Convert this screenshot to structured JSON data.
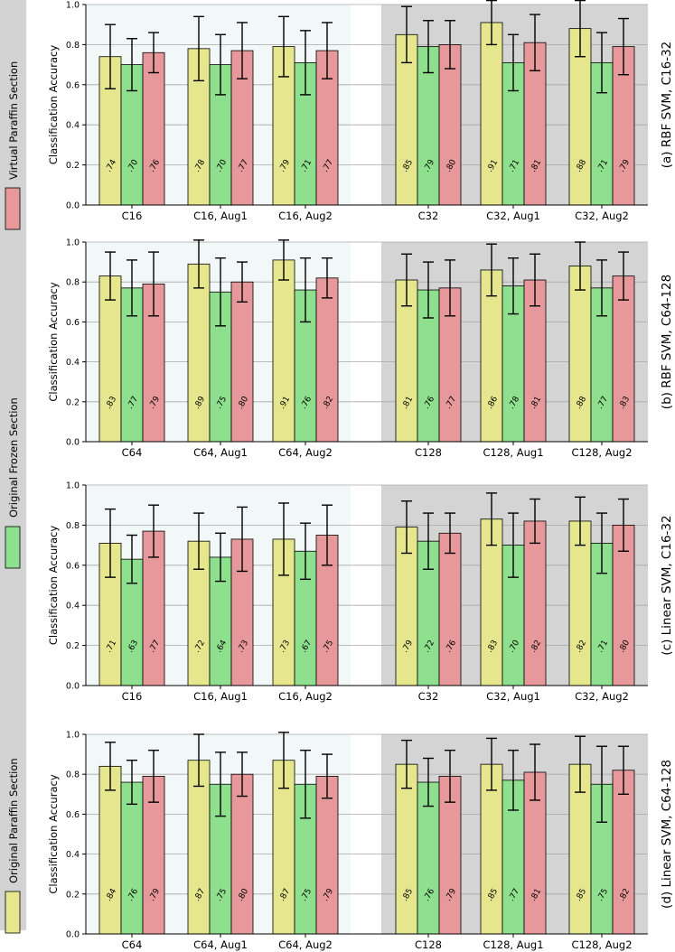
{
  "legend": [
    {
      "label": "Virtual Paraffin Section",
      "color": "#e6989a"
    },
    {
      "label": "Original Frozen Section",
      "color": "#8ee08e"
    },
    {
      "label": "Original Paraffin Section",
      "color": "#e6e68e"
    }
  ],
  "colors": {
    "series": [
      "#e6e68e",
      "#8ee08e",
      "#e6989a"
    ],
    "left_bg": "#f2f7f7",
    "right_bg": "#d4d4d4",
    "sidebar_bg": "#d3d3d3"
  },
  "chart_data": [
    {
      "type": "bar",
      "title": "(a) RBF SVM, C16-32",
      "ylabel": "Classification Accuracy",
      "ylim": [
        0,
        1.0
      ],
      "yticks": [
        "0.0",
        "0.2",
        "0.4",
        "0.6",
        "0.8",
        "1.0"
      ],
      "categories": [
        "C16",
        "C16, Aug1",
        "C16, Aug2",
        "C32",
        "C32, Aug1",
        "C32, Aug2"
      ],
      "series": [
        {
          "name": "Original Paraffin Section",
          "values": [
            0.74,
            0.78,
            0.79,
            0.85,
            0.91,
            0.88
          ],
          "labels": [
            ".74",
            ".78",
            ".79",
            ".85",
            ".91",
            ".88"
          ],
          "errors": [
            0.16,
            0.16,
            0.15,
            0.14,
            0.11,
            0.14
          ]
        },
        {
          "name": "Original Frozen Section",
          "values": [
            0.7,
            0.7,
            0.71,
            0.79,
            0.71,
            0.71
          ],
          "labels": [
            ".70",
            ".70",
            ".71",
            ".79",
            ".71",
            ".71"
          ],
          "errors": [
            0.13,
            0.15,
            0.16,
            0.13,
            0.14,
            0.15
          ]
        },
        {
          "name": "Virtual Paraffin Section",
          "values": [
            0.76,
            0.77,
            0.77,
            0.8,
            0.81,
            0.79
          ],
          "labels": [
            ".76",
            ".77",
            ".77",
            ".80",
            ".81",
            ".79"
          ],
          "errors": [
            0.1,
            0.14,
            0.14,
            0.12,
            0.14,
            0.14
          ]
        }
      ]
    },
    {
      "type": "bar",
      "title": "(b) RBF SVM, C64-128",
      "ylabel": "Classification Accuracy",
      "ylim": [
        0,
        1.0
      ],
      "yticks": [
        "0.0",
        "0.2",
        "0.4",
        "0.6",
        "0.8",
        "1.0"
      ],
      "categories": [
        "C64",
        "C64, Aug1",
        "C64, Aug2",
        "C128",
        "C128, Aug1",
        "C128, Aug2"
      ],
      "series": [
        {
          "name": "Original Paraffin Section",
          "values": [
            0.83,
            0.89,
            0.91,
            0.81,
            0.86,
            0.88
          ],
          "labels": [
            ".83",
            ".89",
            ".91",
            ".81",
            ".86",
            ".88"
          ],
          "errors": [
            0.12,
            0.12,
            0.1,
            0.13,
            0.13,
            0.12
          ]
        },
        {
          "name": "Original Frozen Section",
          "values": [
            0.77,
            0.75,
            0.76,
            0.76,
            0.78,
            0.77
          ],
          "labels": [
            ".77",
            ".75",
            ".76",
            ".76",
            ".78",
            ".77"
          ],
          "errors": [
            0.14,
            0.17,
            0.16,
            0.14,
            0.14,
            0.14
          ]
        },
        {
          "name": "Virtual Paraffin Section",
          "values": [
            0.79,
            0.8,
            0.82,
            0.77,
            0.81,
            0.83
          ],
          "labels": [
            ".79",
            ".80",
            ".82",
            ".77",
            ".81",
            ".83"
          ],
          "errors": [
            0.16,
            0.1,
            0.1,
            0.14,
            0.13,
            0.12
          ]
        }
      ]
    },
    {
      "type": "bar",
      "title": "(c) Linear SVM, C16-32",
      "ylabel": "Classification Accuracy",
      "ylim": [
        0,
        1.0
      ],
      "yticks": [
        "0.0",
        "0.2",
        "0.4",
        "0.6",
        "0.8",
        "1.0"
      ],
      "categories": [
        "C16",
        "C16, Aug1",
        "C16, Aug2",
        "C32",
        "C32, Aug1",
        "C32, Aug2"
      ],
      "series": [
        {
          "name": "Original Paraffin Section",
          "values": [
            0.71,
            0.72,
            0.73,
            0.79,
            0.83,
            0.82
          ],
          "labels": [
            ".71",
            ".72",
            ".73",
            ".79",
            ".83",
            ".82"
          ],
          "errors": [
            0.17,
            0.14,
            0.18,
            0.13,
            0.13,
            0.12
          ]
        },
        {
          "name": "Original Frozen Section",
          "values": [
            0.63,
            0.64,
            0.67,
            0.72,
            0.7,
            0.71
          ],
          "labels": [
            ".63",
            ".64",
            ".67",
            ".72",
            ".70",
            ".71"
          ],
          "errors": [
            0.12,
            0.12,
            0.14,
            0.14,
            0.16,
            0.15
          ]
        },
        {
          "name": "Virtual Paraffin Section",
          "values": [
            0.77,
            0.73,
            0.75,
            0.76,
            0.82,
            0.8
          ],
          "labels": [
            ".77",
            ".73",
            ".75",
            ".76",
            ".82",
            ".80"
          ],
          "errors": [
            0.13,
            0.16,
            0.15,
            0.1,
            0.11,
            0.13
          ]
        }
      ]
    },
    {
      "type": "bar",
      "title": "(d) Linear SVM, C64-128",
      "ylabel": "Classification Accuracy",
      "ylim": [
        0,
        1.0
      ],
      "yticks": [
        "0.0",
        "0.2",
        "0.4",
        "0.6",
        "0.8",
        "1.0"
      ],
      "categories": [
        "C64",
        "C64, Aug1",
        "C64, Aug2",
        "C128",
        "C128, Aug1",
        "C128, Aug2"
      ],
      "series": [
        {
          "name": "Original Paraffin Section",
          "values": [
            0.84,
            0.87,
            0.87,
            0.85,
            0.85,
            0.85
          ],
          "labels": [
            ".84",
            ".87",
            ".87",
            ".85",
            ".85",
            ".85"
          ],
          "errors": [
            0.12,
            0.13,
            0.14,
            0.12,
            0.13,
            0.14
          ]
        },
        {
          "name": "Original Frozen Section",
          "values": [
            0.76,
            0.75,
            0.75,
            0.76,
            0.77,
            0.75
          ],
          "labels": [
            ".76",
            ".75",
            ".75",
            ".76",
            ".77",
            ".75"
          ],
          "errors": [
            0.11,
            0.16,
            0.17,
            0.12,
            0.15,
            0.19
          ]
        },
        {
          "name": "Virtual Paraffin Section",
          "values": [
            0.79,
            0.8,
            0.79,
            0.79,
            0.81,
            0.82
          ],
          "labels": [
            ".79",
            ".80",
            ".79",
            ".79",
            ".81",
            ".82"
          ],
          "errors": [
            0.13,
            0.11,
            0.11,
            0.13,
            0.14,
            0.12
          ]
        }
      ]
    }
  ]
}
